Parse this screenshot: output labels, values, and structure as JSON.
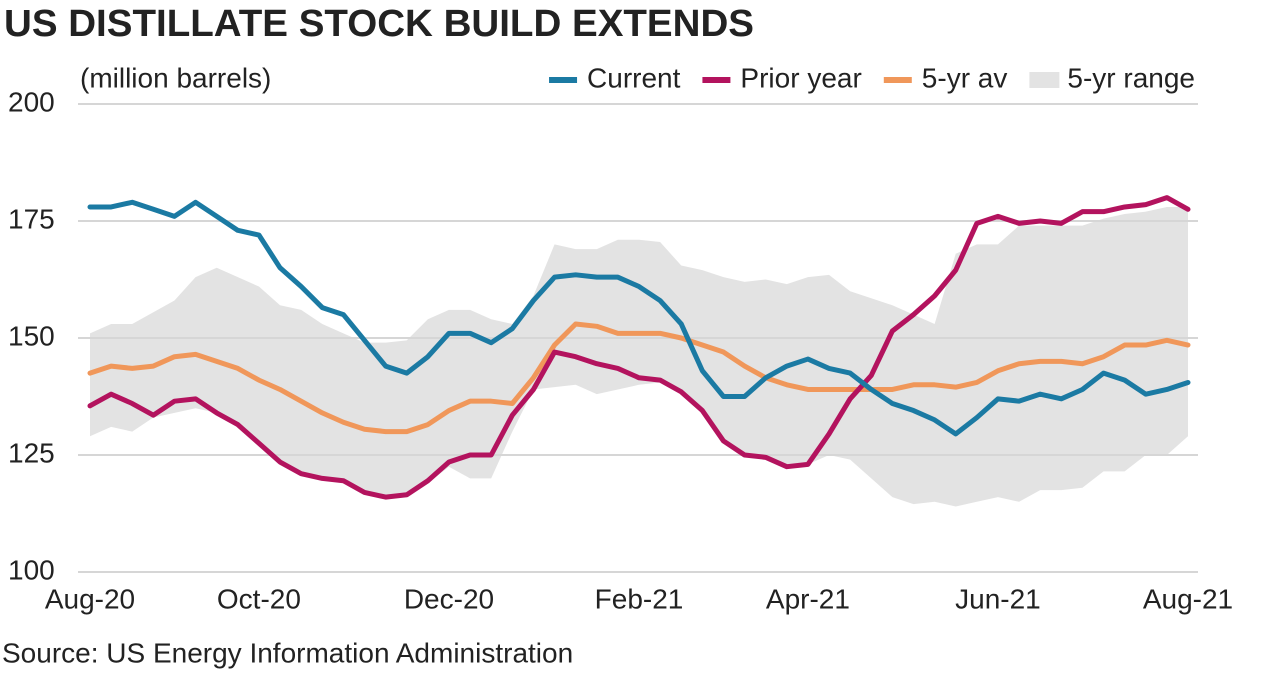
{
  "chart_data": {
    "type": "line",
    "title": "US DISTILLATE STOCK BUILD EXTENDS",
    "y_label": "(million barrels)",
    "source": "Source: US Energy Information Administration",
    "categories": [
      "Aug-20",
      null,
      null,
      null,
      null,
      null,
      null,
      null,
      "Oct-20",
      null,
      null,
      null,
      null,
      null,
      null,
      null,
      null,
      "Dec-20",
      null,
      null,
      null,
      null,
      null,
      null,
      null,
      null,
      "Feb-21",
      null,
      null,
      null,
      null,
      null,
      null,
      null,
      "Apr-21",
      null,
      null,
      null,
      null,
      null,
      null,
      null,
      null,
      "Jun-21",
      null,
      null,
      null,
      null,
      null,
      null,
      null,
      null,
      "Aug-21"
    ],
    "series": [
      {
        "name": "Current",
        "color": "#1b7aa3",
        "values": [
          178,
          178,
          179,
          177.5,
          176,
          179,
          176,
          173,
          172,
          165,
          161,
          156.5,
          155,
          149.5,
          144,
          142.5,
          146,
          151,
          151,
          149,
          152,
          158,
          163,
          163.5,
          163,
          163,
          161,
          158,
          153,
          143,
          137.5,
          137.5,
          141.5,
          144,
          145.5,
          143.5,
          142.5,
          139,
          136,
          134.5,
          132.5,
          129.5,
          133,
          137,
          136.5,
          138,
          137,
          139,
          142.5,
          141,
          138,
          139,
          140.5
        ]
      },
      {
        "name": "Prior year",
        "color": "#b3135e",
        "values": [
          135.5,
          138,
          136,
          133.5,
          136.5,
          137,
          134,
          131.5,
          127.5,
          123.5,
          121,
          120,
          119.5,
          117,
          116,
          116.5,
          119.5,
          123.5,
          125,
          125,
          133.5,
          139,
          147,
          146,
          144.5,
          143.5,
          141.5,
          141,
          138.5,
          134.5,
          128,
          125,
          124.5,
          122.5,
          123,
          129.5,
          137,
          142,
          151.5,
          155,
          159,
          164.5,
          174.5,
          176,
          174.5,
          175,
          174.5,
          177,
          177,
          178,
          178.5,
          180,
          177.5
        ]
      },
      {
        "name": "5-yr av",
        "color": "#f0975a",
        "values": [
          142.5,
          144,
          143.5,
          144,
          146,
          146.5,
          145,
          143.5,
          141,
          139,
          136.5,
          134,
          132,
          130.5,
          130,
          130,
          131.5,
          134.5,
          136.5,
          136.5,
          136,
          141.5,
          148.5,
          153,
          152.5,
          151,
          151,
          151,
          150,
          148.5,
          147,
          144,
          141.5,
          140,
          139,
          139,
          139,
          139,
          139,
          140,
          140,
          139.5,
          140.5,
          143,
          144.5,
          145,
          145,
          144.5,
          146,
          148.5,
          148.5,
          149.5,
          148.5
        ]
      },
      {
        "name": "5-yr range",
        "color": "#e3e3e3",
        "high": [
          151,
          153,
          153,
          155.5,
          158,
          163,
          165,
          163,
          161,
          157,
          156,
          153,
          151,
          149,
          149,
          149.5,
          154,
          156,
          156,
          154,
          153,
          159,
          170,
          169,
          169,
          171,
          171,
          170.5,
          165.5,
          164.5,
          163,
          162,
          162.5,
          161.5,
          163,
          163.5,
          160,
          158.5,
          157,
          155,
          153,
          168,
          170,
          170,
          174,
          174,
          174,
          174,
          175.5,
          176.5,
          177,
          178,
          178
        ],
        "low": [
          129,
          131,
          130,
          133,
          134,
          135,
          134,
          131,
          128,
          124,
          121,
          120,
          119.5,
          117,
          116,
          116,
          119,
          122.5,
          120,
          120,
          130,
          139,
          139.5,
          140,
          138,
          139,
          140,
          140.5,
          138,
          134,
          128,
          125,
          124.5,
          122.5,
          123,
          125,
          124,
          120,
          116,
          114.5,
          115,
          114,
          115,
          116,
          115,
          117.5,
          117.5,
          118,
          121.5,
          121.5,
          125,
          125,
          129
        ]
      }
    ],
    "ylim": [
      100,
      200
    ],
    "yticks": [
      100,
      125,
      150,
      175,
      200
    ],
    "grid": true,
    "legend": "top-right"
  }
}
